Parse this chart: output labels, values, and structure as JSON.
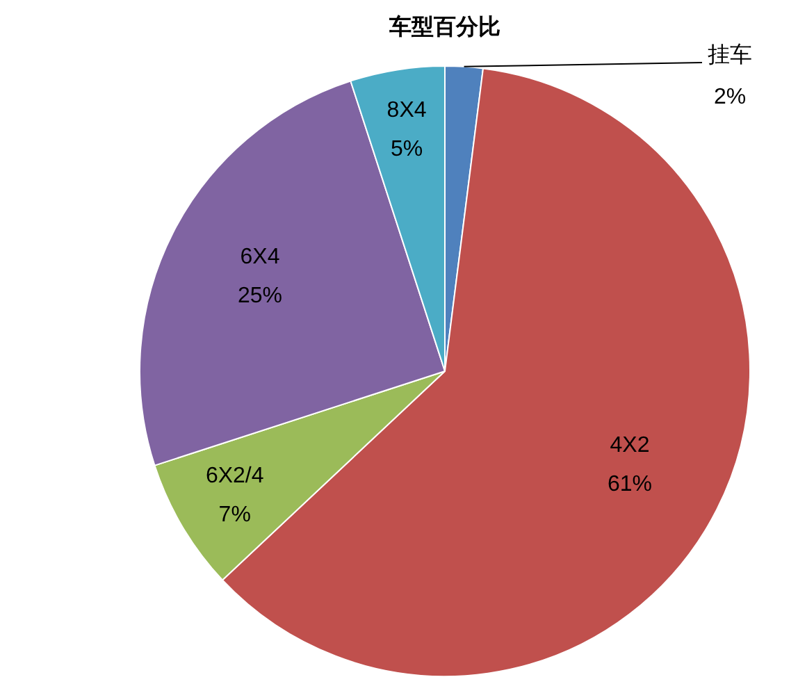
{
  "chart_data": {
    "type": "pie",
    "title": "车型百分比",
    "categories": [
      "挂车",
      "4X2",
      "6X2/4",
      "6X4",
      "8X4"
    ],
    "values": [
      2,
      61,
      7,
      25,
      5
    ],
    "value_labels": [
      "2%",
      "61%",
      "7%",
      "25%",
      "5%"
    ],
    "colors": [
      "#4f81bd",
      "#c0504d",
      "#9bbb59",
      "#8064a2",
      "#4bacc6"
    ],
    "legend": false
  }
}
